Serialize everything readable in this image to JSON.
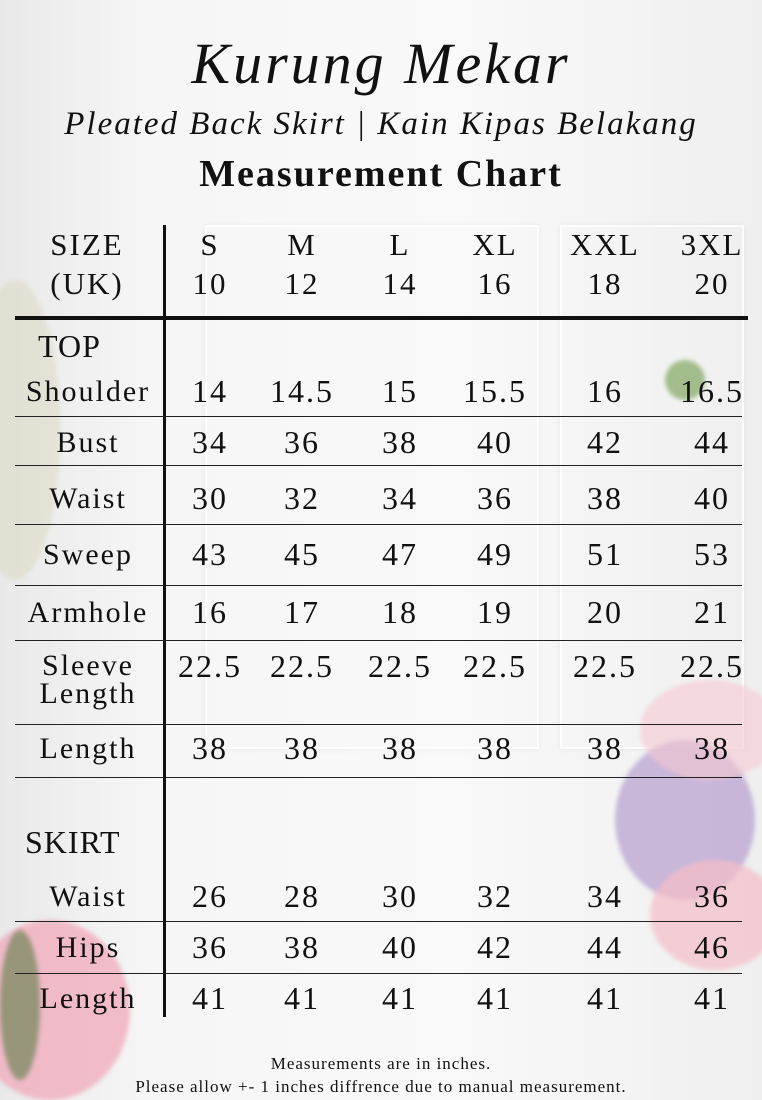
{
  "title": "Kurung Mekar",
  "subtitle": "Pleated Back Skirt | Kain Kipas Belakang",
  "heading": "Measurement Chart",
  "header": {
    "label_line1": "SIZE",
    "label_line2": "(UK)",
    "sizes": [
      {
        "letter": "S",
        "uk": "10"
      },
      {
        "letter": "M",
        "uk": "12"
      },
      {
        "letter": "L",
        "uk": "14"
      },
      {
        "letter": "XL",
        "uk": "16"
      },
      {
        "letter": "XXL",
        "uk": "18"
      },
      {
        "letter": "3XL",
        "uk": "20"
      }
    ]
  },
  "top": {
    "section_label": "TOP",
    "rows": [
      {
        "label": "Shoulder",
        "values": [
          "14",
          "14.5",
          "15",
          "15.5",
          "16",
          "16.5"
        ]
      },
      {
        "label": "Bust",
        "values": [
          "34",
          "36",
          "38",
          "40",
          "42",
          "44"
        ]
      },
      {
        "label": "Waist",
        "values": [
          "30",
          "32",
          "34",
          "36",
          "38",
          "40"
        ]
      },
      {
        "label": "Sweep",
        "values": [
          "43",
          "45",
          "47",
          "49",
          "51",
          "53"
        ]
      },
      {
        "label": "Armhole",
        "values": [
          "16",
          "17",
          "18",
          "19",
          "20",
          "21"
        ]
      },
      {
        "label": "Sleeve Length",
        "values": [
          "22.5",
          "22.5",
          "22.5",
          "22.5",
          "22.5",
          "22.5"
        ]
      },
      {
        "label": "Length",
        "values": [
          "38",
          "38",
          "38",
          "38",
          "38",
          "38"
        ]
      }
    ]
  },
  "skirt": {
    "section_label": "SKIRT",
    "rows": [
      {
        "label": "Waist",
        "values": [
          "26",
          "28",
          "30",
          "32",
          "34",
          "36"
        ]
      },
      {
        "label": "Hips",
        "values": [
          "36",
          "38",
          "40",
          "42",
          "44",
          "46"
        ]
      },
      {
        "label": "Length",
        "values": [
          "41",
          "41",
          "41",
          "41",
          "41",
          "41"
        ]
      }
    ]
  },
  "footer": {
    "line1": "Measurements are in inches.",
    "line2": "Please allow +- 1 inches diffrence due to manual measurement."
  },
  "colors": {
    "text": "#111111",
    "flower_pink": "#f2b8c4",
    "flower_purple": "#b9a3d0",
    "leaf_green": "#6f9a4a"
  }
}
